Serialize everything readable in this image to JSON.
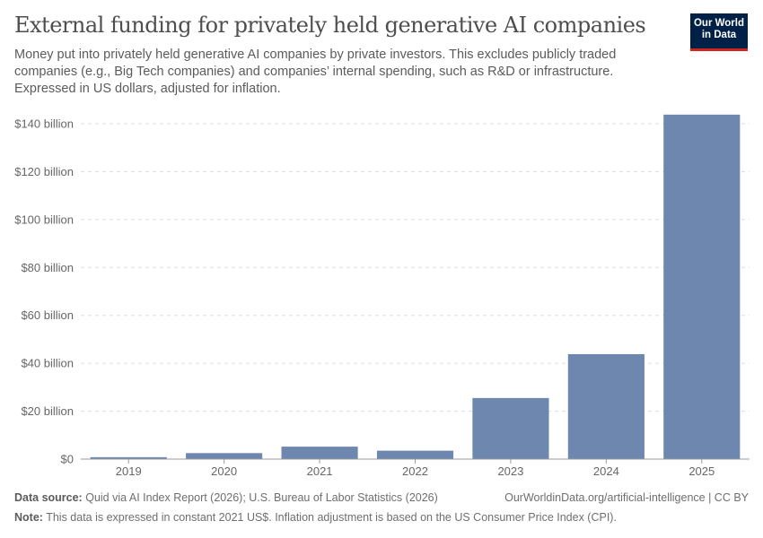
{
  "header": {
    "title": "External funding for privately held generative AI companies",
    "subtitle": "Money put into privately held generative AI companies by private investors. This excludes publicly traded companies (e.g., Big Tech companies) and companies’ internal spending, such as R&D or infrastructure. Expressed in US dollars, adjusted for inflation.",
    "logo_line1": "Our World",
    "logo_line2": "in Data"
  },
  "chart_data": {
    "type": "bar",
    "title": "External funding for privately held generative AI companies",
    "categories": [
      "2019",
      "2020",
      "2021",
      "2022",
      "2023",
      "2024",
      "2025"
    ],
    "values": [
      0.8,
      2.5,
      5.2,
      3.5,
      25.5,
      43.8,
      143.8
    ],
    "unit": "billion US$",
    "ylim": [
      0,
      140
    ],
    "yticks": [
      0,
      20,
      40,
      60,
      80,
      100,
      120,
      140
    ],
    "ytick_labels": [
      "$0",
      "$20 billion",
      "$40 billion",
      "$60 billion",
      "$80 billion",
      "$100 billion",
      "$120 billion",
      "$140 billion"
    ],
    "grid": true,
    "bar_color": "#6d87ae"
  },
  "footer": {
    "source_label": "Data source:",
    "source_text": "Quid via AI Index Report (2026); U.S. Bureau of Labor Statistics (2026)",
    "url": "OurWorldinData.org/artificial-intelligence | CC BY",
    "note_label": "Note:",
    "note_text": "This data is expressed in constant 2021 US$. Inflation adjustment is based on the US Consumer Price Index (CPI)."
  }
}
